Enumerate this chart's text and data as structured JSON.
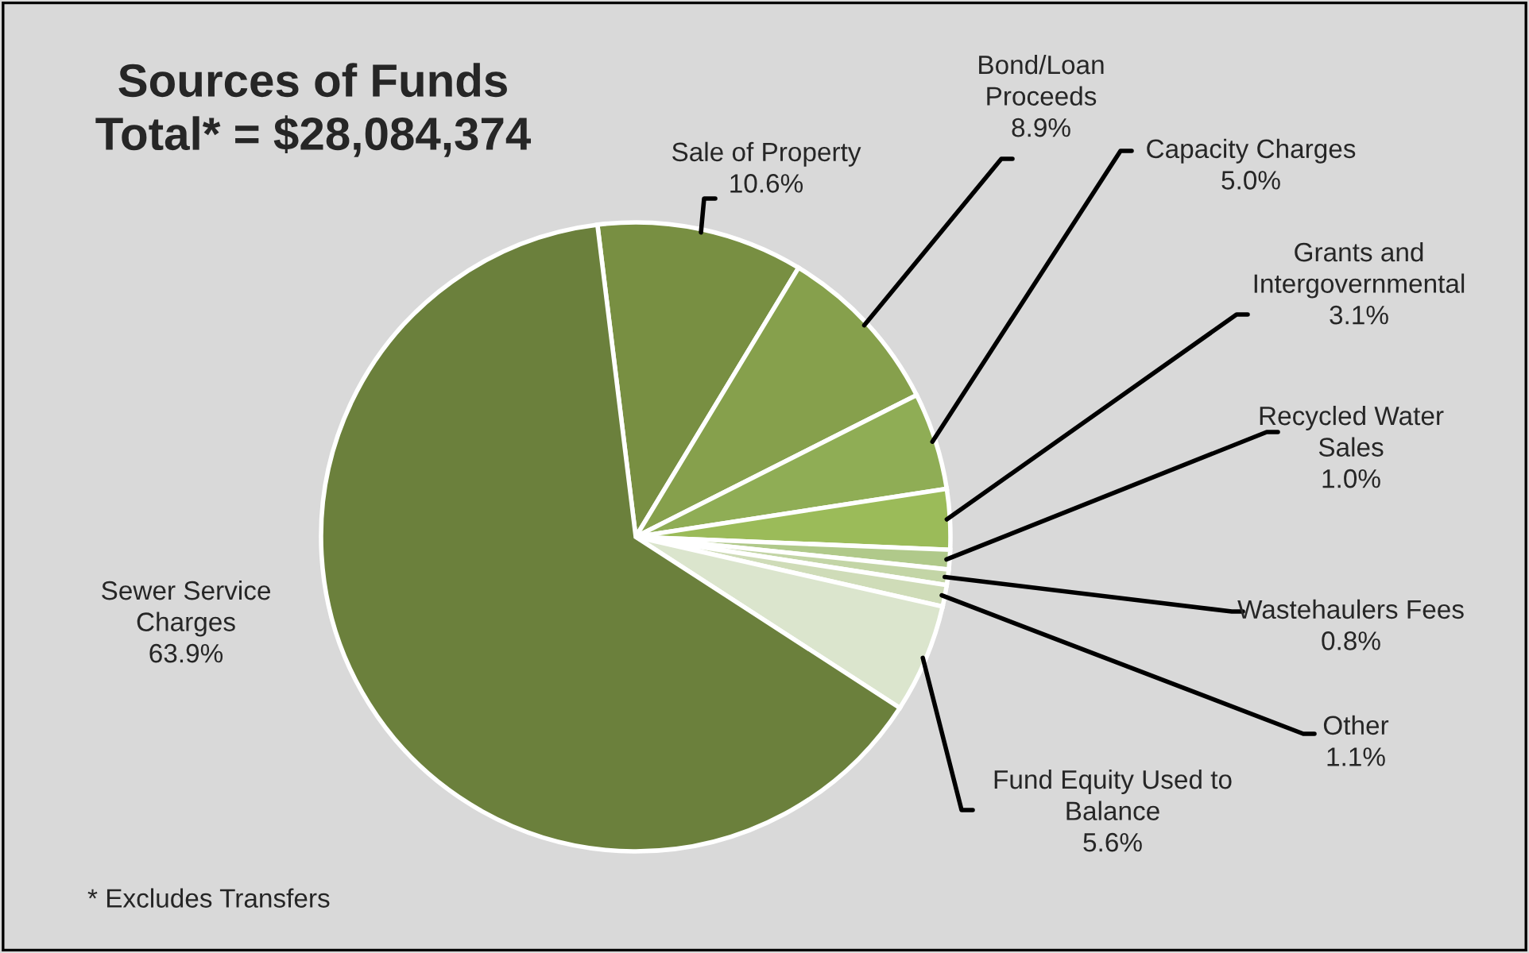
{
  "chart_data": {
    "type": "pie",
    "title": "Sources of Funds\nTotal* = $28,084,374",
    "categories": [
      "Sale of Property",
      "Bond/Loan\nProceeds",
      "Capacity Charges",
      "Grants and\nIntergovernmental",
      "Recycled Water\nSales",
      "Wastehaulers Fees",
      "Other",
      "Fund Equity Used to\nBalance",
      "Sewer Service\nCharges"
    ],
    "values": [
      10.6,
      8.9,
      5.0,
      3.1,
      1.0,
      0.8,
      1.1,
      5.6,
      63.9
    ],
    "colors": [
      "#788f42",
      "#86a04c",
      "#8fad55",
      "#9bbb59",
      "#b0c98a",
      "#c3d5a6",
      "#cfdcb8",
      "#dbe5cd",
      "#6b803c"
    ],
    "value_labels": [
      "10.6%",
      "8.9%",
      "5.0%",
      "3.1%",
      "1.0%",
      "0.8%",
      "1.1%",
      "5.6%",
      "63.9%"
    ],
    "annotations": [
      "* Excludes Transfers"
    ]
  }
}
